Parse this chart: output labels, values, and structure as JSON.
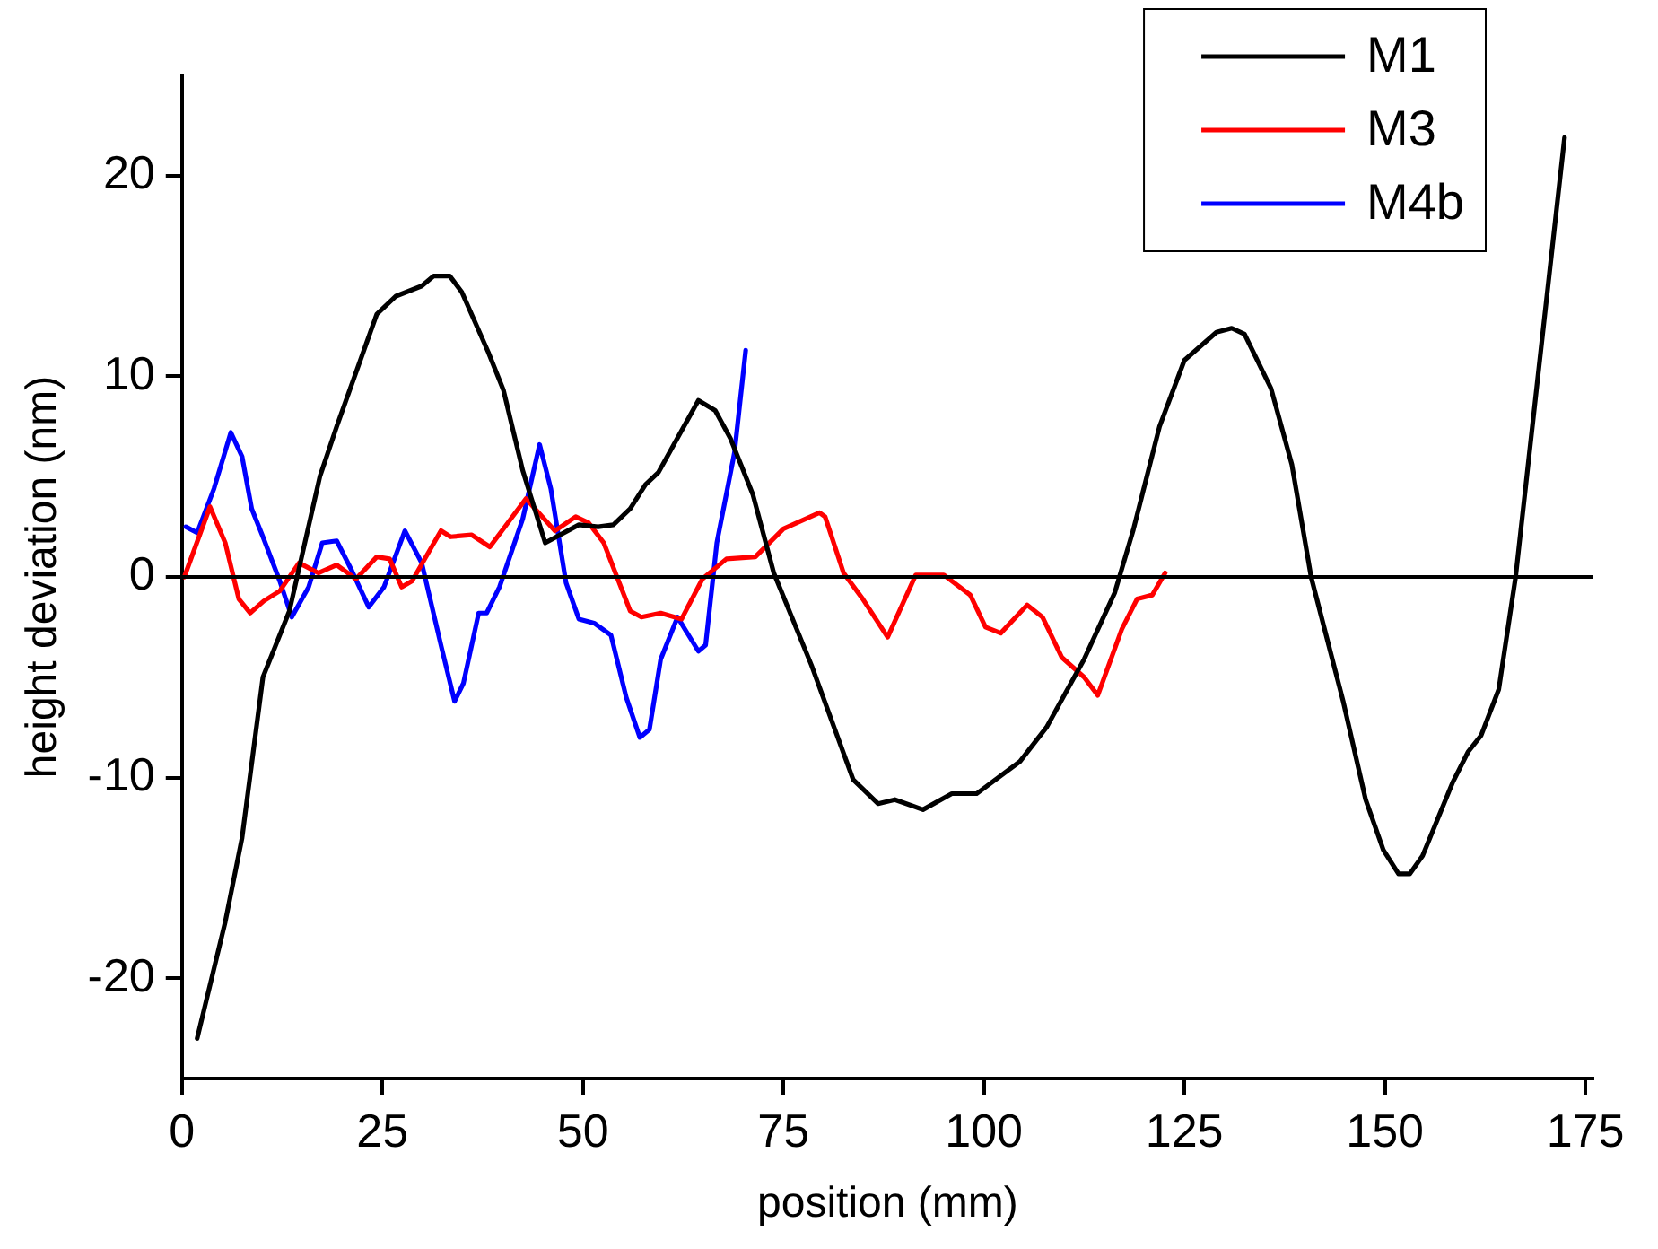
{
  "chart_data": {
    "type": "line",
    "xlabel": "position (mm)",
    "ylabel": "height deviation (nm)",
    "xlim": [
      0,
      176
    ],
    "ylim": [
      -25,
      25
    ],
    "xticks": [
      0,
      25,
      50,
      75,
      100,
      125,
      150,
      175
    ],
    "yticks": [
      -20,
      -10,
      0,
      10,
      20
    ],
    "legend": "top right",
    "marker": "none",
    "line_style": "solid",
    "ref_lines": [
      {
        "axis": "y",
        "value": 0,
        "color": "#000000"
      }
    ],
    "series": [
      {
        "name": "M1",
        "color": "#000000",
        "x": [
          1.9,
          5.4,
          7.5,
          10.1,
          13.4,
          17.2,
          19.3,
          24.3,
          26.7,
          29.9,
          31.4,
          33.4,
          34.9,
          38.2,
          40.1,
          42.5,
          45.3,
          49.5,
          51.9,
          53.8,
          55.9,
          57.8,
          59.4,
          64.4,
          66.5,
          68.4,
          71.2,
          73.8,
          78.5,
          83.7,
          86.8,
          88.9,
          92.4,
          96.0,
          99.1,
          104.5,
          107.8,
          112.5,
          116.3,
          118.6,
          121.9,
          125.0,
          129.0,
          130.9,
          132.5,
          135.8,
          138.4,
          140.8,
          144.8,
          147.6,
          149.8,
          151.7,
          153.1,
          154.7,
          158.5,
          160.4,
          162.0,
          164.2,
          166.3,
          172.4
        ],
        "values": [
          -23.0,
          -17.2,
          -13.0,
          -5.0,
          -1.7,
          5.0,
          7.5,
          13.1,
          14.0,
          14.5,
          15.0,
          15.0,
          14.2,
          11.2,
          9.3,
          5.3,
          1.7,
          2.6,
          2.5,
          2.6,
          3.4,
          4.6,
          5.2,
          8.8,
          8.3,
          6.9,
          4.1,
          0.2,
          -4.4,
          -10.1,
          -11.3,
          -11.1,
          -11.6,
          -10.8,
          -10.8,
          -9.2,
          -7.5,
          -4.1,
          -0.8,
          2.3,
          7.5,
          10.8,
          12.2,
          12.4,
          12.1,
          9.4,
          5.6,
          0,
          -6.2,
          -11.1,
          -13.6,
          -14.8,
          -14.8,
          -13.9,
          -10.2,
          -8.7,
          -7.9,
          -5.6,
          0,
          21.9
        ]
      },
      {
        "name": "M3",
        "color": "#ff0000",
        "x": [
          0.3,
          3.5,
          5.4,
          7.1,
          8.5,
          10.2,
          12.2,
          14.6,
          17.0,
          19.3,
          21.7,
          24.3,
          25.9,
          27.4,
          28.7,
          32.3,
          33.5,
          36.1,
          38.4,
          42.9,
          46.5,
          49.1,
          50.7,
          52.6,
          55.9,
          57.3,
          59.7,
          62.3,
          64.9,
          67.9,
          71.5,
          75.0,
          79.5,
          80.2,
          82.5,
          84.9,
          88.0,
          91.5,
          95.0,
          98.3,
          100.2,
          102.1,
          105.4,
          107.3,
          109.7,
          112.5,
          114.2,
          117.2,
          119.1,
          121.0,
          122.6
        ],
        "values": [
          0,
          3.5,
          1.7,
          -1.1,
          -1.8,
          -1.2,
          -0.7,
          0.7,
          0.2,
          0.6,
          -0.1,
          1.0,
          0.9,
          -0.5,
          -0.2,
          2.3,
          2.0,
          2.1,
          1.5,
          3.9,
          2.3,
          3.0,
          2.7,
          1.7,
          -1.7,
          -2.0,
          -1.8,
          -2.1,
          -0.1,
          0.9,
          1.0,
          2.4,
          3.2,
          3.0,
          0.2,
          -1.1,
          -3.0,
          0.1,
          0.1,
          -0.9,
          -2.5,
          -2.8,
          -1.4,
          -2.0,
          -4.0,
          -5.0,
          -5.9,
          -2.6,
          -1.1,
          -0.9,
          0.2
        ]
      },
      {
        "name": "M4b",
        "color": "#0000ff",
        "x": [
          0.5,
          1.9,
          4.0,
          6.1,
          7.5,
          8.7,
          10.1,
          12.2,
          13.7,
          15.8,
          17.5,
          19.3,
          21.2,
          23.3,
          25.2,
          27.8,
          29.9,
          32.3,
          34.0,
          35.1,
          37.0,
          38.0,
          39.6,
          42.5,
          44.6,
          46.0,
          47.9,
          49.5,
          51.4,
          53.5,
          55.4,
          57.1,
          58.3,
          59.7,
          61.8,
          64.4,
          65.3,
          66.7,
          68.9,
          70.3
        ],
        "values": [
          2.5,
          2.2,
          4.4,
          7.2,
          6.0,
          3.4,
          2.0,
          -0.2,
          -2.0,
          -0.5,
          1.7,
          1.8,
          0.3,
          -1.5,
          -0.5,
          2.3,
          0.7,
          -3.4,
          -6.2,
          -5.3,
          -1.8,
          -1.8,
          -0.5,
          2.9,
          6.6,
          4.4,
          -0.3,
          -2.1,
          -2.3,
          -2.9,
          -6.0,
          -8.0,
          -7.6,
          -4.1,
          -2.0,
          -3.7,
          -3.4,
          1.7,
          6.2,
          11.3
        ]
      }
    ]
  }
}
